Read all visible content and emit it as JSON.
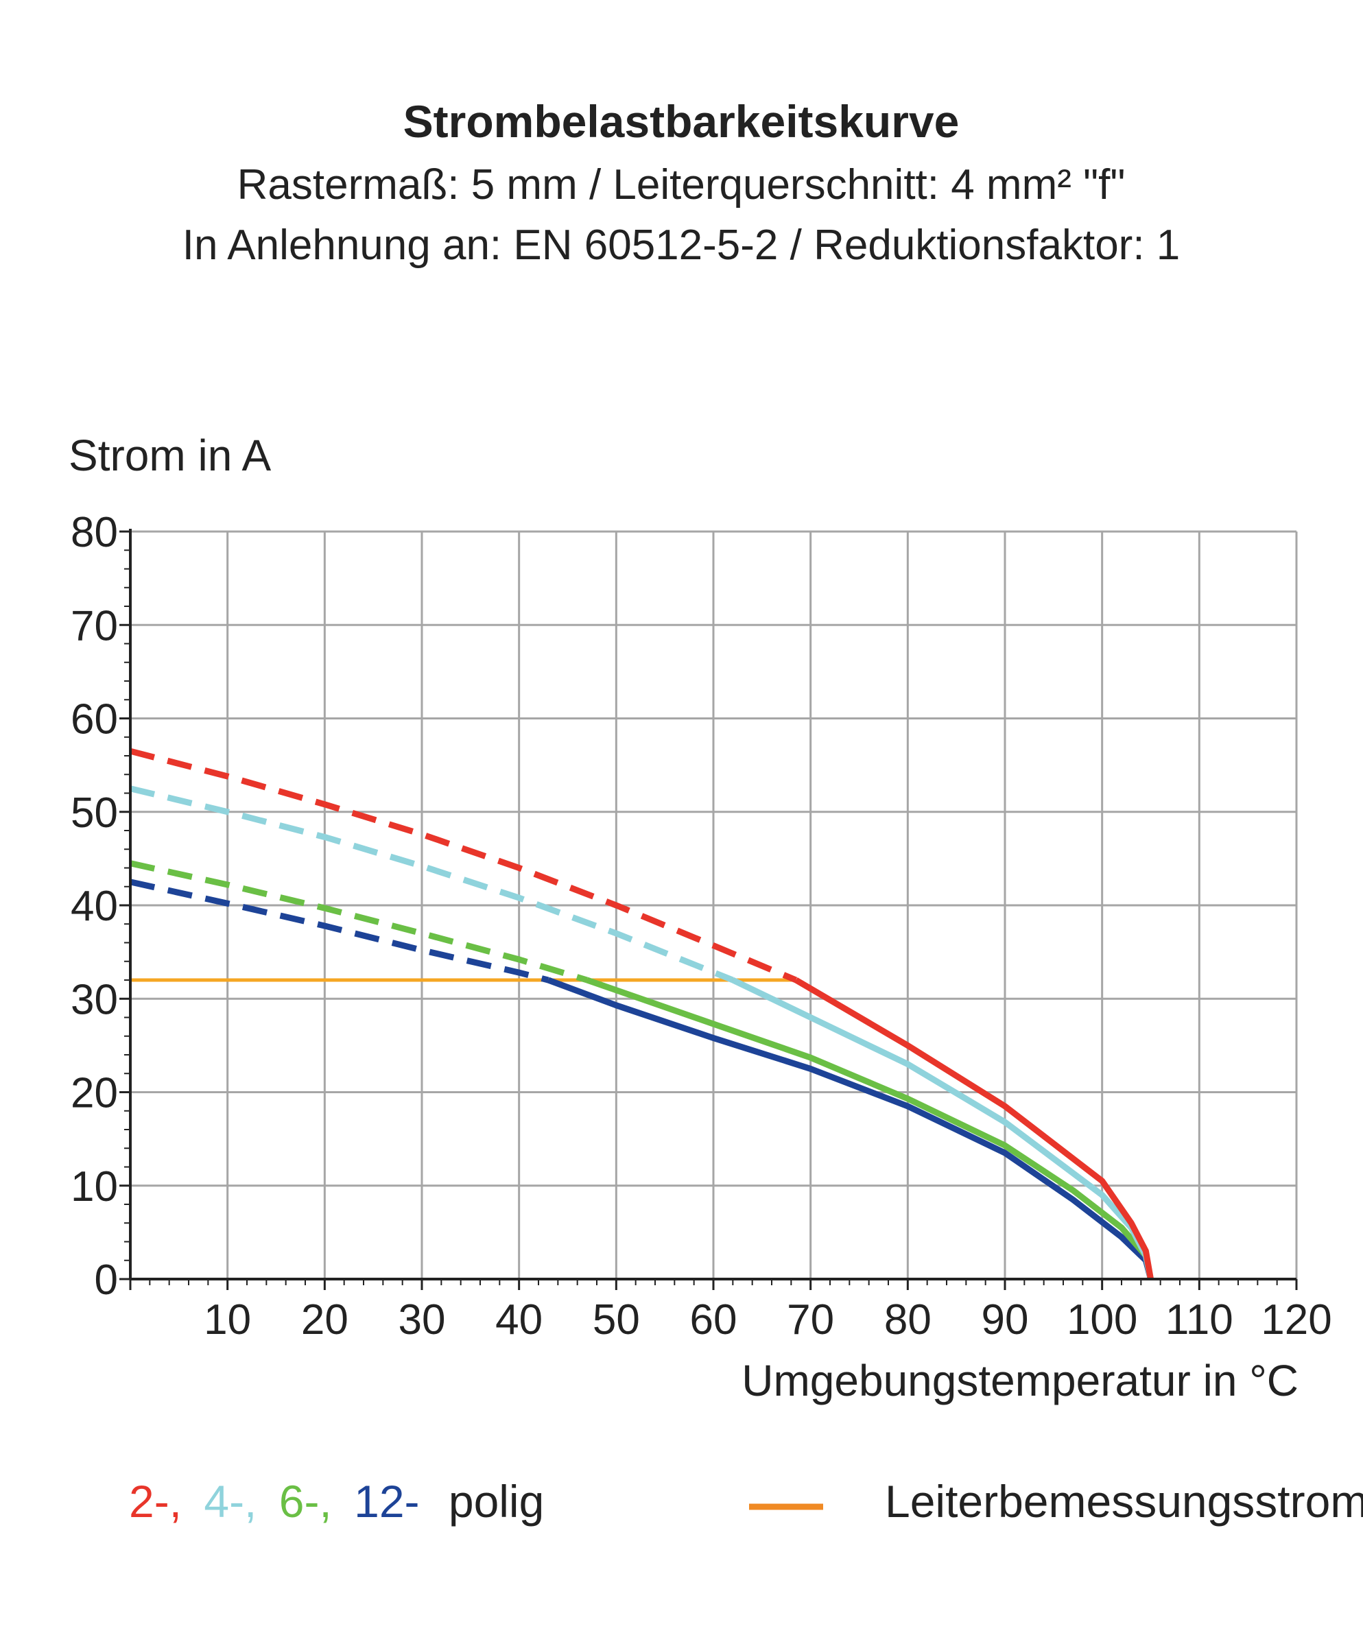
{
  "colors": {
    "grid": "#a6a6a6",
    "axis": "#222222",
    "rated_current": "#f5a623",
    "rated_current_legend": "#f08a24"
  },
  "chart_data": {
    "type": "line",
    "title": "Strombelastbarkeitskurve",
    "subtitle1": "Rastermaß: 5 mm / Leiterquerschnitt: 4 mm² \"f\"",
    "subtitle2": "In Anlehnung an: EN 60512-5-2 / Reduktionsfaktor: 1",
    "ylabel": "Strom in A",
    "xlabel": "Umgebungstemperatur in °C",
    "xlim": [
      0,
      120
    ],
    "ylim": [
      0,
      80
    ],
    "xticks": [
      10,
      20,
      30,
      40,
      50,
      60,
      70,
      80,
      90,
      100,
      110,
      120
    ],
    "yticks": [
      0,
      10,
      20,
      30,
      40,
      50,
      60,
      70,
      80
    ],
    "grid": true,
    "series": [
      {
        "name": "2-",
        "color": "#e8352a",
        "points": [
          [
            0,
            56.5
          ],
          [
            10,
            53.8
          ],
          [
            20,
            50.8
          ],
          [
            30,
            47.6
          ],
          [
            40,
            44.0
          ],
          [
            50,
            40.0
          ],
          [
            60,
            35.7
          ],
          [
            68.5,
            32
          ],
          [
            80,
            25.0
          ],
          [
            90,
            18.5
          ],
          [
            100,
            10.5
          ],
          [
            103,
            6.0
          ],
          [
            104.5,
            3.0
          ],
          [
            105,
            0
          ]
        ]
      },
      {
        "name": "4-",
        "color": "#8fd3dc",
        "points": [
          [
            0,
            52.5
          ],
          [
            10,
            50.0
          ],
          [
            20,
            47.3
          ],
          [
            30,
            44.2
          ],
          [
            40,
            40.8
          ],
          [
            50,
            37.0
          ],
          [
            62,
            32
          ],
          [
            70,
            28.0
          ],
          [
            80,
            23.0
          ],
          [
            90,
            16.8
          ],
          [
            100,
            9.0
          ],
          [
            103,
            5.5
          ],
          [
            104.5,
            2.5
          ],
          [
            105,
            0
          ]
        ]
      },
      {
        "name": "6-",
        "color": "#6abf45",
        "points": [
          [
            0,
            44.5
          ],
          [
            10,
            42.2
          ],
          [
            20,
            39.7
          ],
          [
            30,
            37.0
          ],
          [
            40,
            34.2
          ],
          [
            47,
            32
          ],
          [
            60,
            27.3
          ],
          [
            70,
            23.7
          ],
          [
            80,
            19.3
          ],
          [
            90,
            14.3
          ],
          [
            97,
            9.5
          ],
          [
            102,
            5.5
          ],
          [
            104.5,
            2.5
          ],
          [
            105,
            0
          ]
        ]
      },
      {
        "name": "12-",
        "color": "#1d4397",
        "points": [
          [
            0,
            42.5
          ],
          [
            10,
            40.2
          ],
          [
            20,
            37.8
          ],
          [
            30,
            35.2
          ],
          [
            40,
            32.8
          ],
          [
            43,
            32
          ],
          [
            50,
            29.3
          ],
          [
            60,
            25.8
          ],
          [
            70,
            22.5
          ],
          [
            80,
            18.5
          ],
          [
            90,
            13.5
          ],
          [
            97,
            8.5
          ],
          [
            102,
            4.5
          ],
          [
            104.5,
            2
          ],
          [
            105,
            0
          ]
        ]
      }
    ],
    "rated_current": {
      "name": "Leiterbemessungsstrom",
      "value": 32
    },
    "legend": {
      "polig_prefix": [
        "2-,",
        "4-,",
        "6-,",
        "12-"
      ],
      "polig_suffix": "polig",
      "rated_label": "Leiterbemessungsstrom"
    }
  }
}
